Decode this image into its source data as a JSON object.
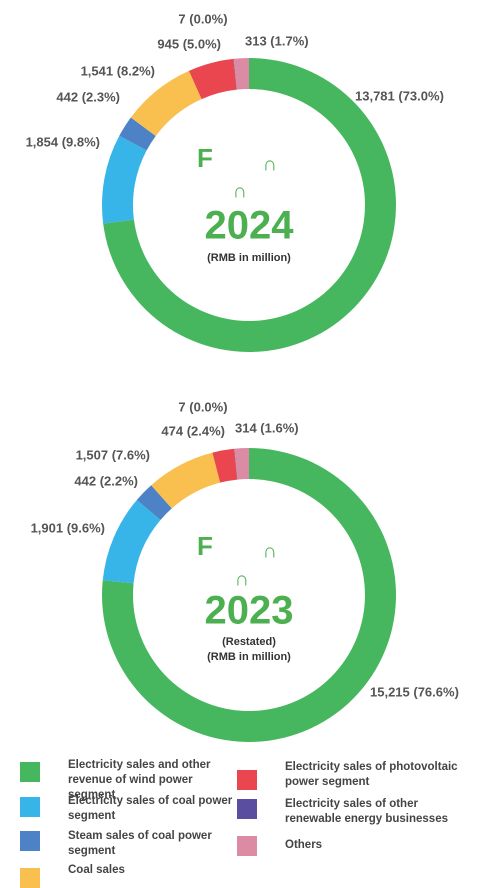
{
  "chart_data": [
    {
      "type": "pie",
      "title": "2024",
      "glyphs": [
        "F",
        "∩",
        "∩"
      ],
      "subtitle": [
        "(RMB in million)"
      ],
      "values": [
        13781,
        1854,
        442,
        1541,
        945,
        7,
        313
      ],
      "value_labels": [
        "13,781 (73.0%)",
        "1,854 (9.8%)",
        "442 (2.3%)",
        "1,541 (8.2%)",
        "945 (5.0%)",
        "7 (0.0%)",
        "313 (1.7%)"
      ]
    },
    {
      "type": "pie",
      "title": "2023",
      "glyphs": [
        "F",
        "∩",
        "∩"
      ],
      "subtitle": [
        "(Restated)",
        "(RMB in million)"
      ],
      "values": [
        15215,
        1901,
        442,
        1507,
        474,
        7,
        314
      ],
      "value_labels": [
        "15,215 (76.6%)",
        "1,901 (9.6%)",
        "442 (2.2%)",
        "1,507 (7.6%)",
        "474 (2.4%)",
        "7 (0.0%)",
        "314 (1.6%)"
      ]
    }
  ],
  "legend": {
    "labels": [
      "Electricity sales and other revenue of wind power segment",
      "Electricity sales of coal power segment",
      "Steam sales of coal power segment",
      "Coal sales",
      "Electricity sales of photovoltaic power segment",
      "Electricity sales of other renewable energy businesses",
      "Others"
    ],
    "colors": [
      "#47b75f",
      "#38b5e8",
      "#4d82c6",
      "#f9bf4f",
      "#e9464f",
      "#5a4ea0",
      "#db8ba3"
    ]
  }
}
